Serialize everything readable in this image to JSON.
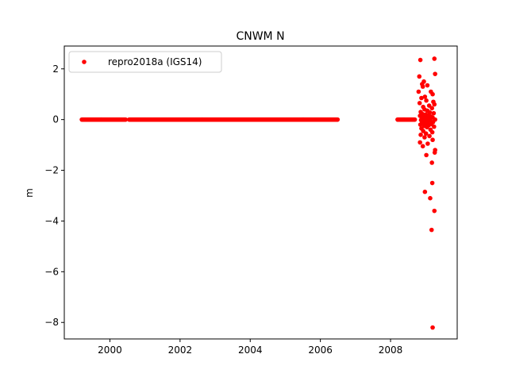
{
  "chart_data": {
    "type": "scatter",
    "title": "CNWM N",
    "xlabel": "",
    "ylabel": "m",
    "xlim": [
      1998.7,
      2009.9
    ],
    "ylim": [
      -8.65,
      2.9
    ],
    "xticks": [
      2000,
      2002,
      2004,
      2006,
      2008
    ],
    "yticks": [
      2,
      0,
      -2,
      -4,
      -6,
      -8
    ],
    "tick_labels": {
      "x": [
        "2000",
        "2002",
        "2004",
        "2006",
        "2008"
      ],
      "y": [
        "2",
        "0",
        "−2",
        "−4",
        "−6",
        "−8"
      ]
    },
    "grid": false,
    "legend": {
      "location": "top-left"
    },
    "series": [
      {
        "name": "repro2018a (IGS14)",
        "color": "#ff0000",
        "marker": "circle",
        "segments": [
          {
            "x_start": 1999.2,
            "x_end": 2000.45,
            "y": 0.0
          },
          {
            "x_start": 2000.55,
            "x_end": 2006.5,
            "y": 0.0
          },
          {
            "x_start": 2008.2,
            "x_end": 2008.7,
            "y": 0.0
          }
        ],
        "points": [
          [
            2008.85,
            2.35
          ],
          [
            2009.25,
            2.4
          ],
          [
            2009.27,
            1.8
          ],
          [
            2008.82,
            1.7
          ],
          [
            2008.95,
            1.5
          ],
          [
            2008.9,
            1.4
          ],
          [
            2009.05,
            1.35
          ],
          [
            2008.92,
            1.3
          ],
          [
            2009.15,
            1.1
          ],
          [
            2008.8,
            1.1
          ],
          [
            2009.2,
            1.0
          ],
          [
            2008.98,
            0.9
          ],
          [
            2008.88,
            0.85
          ],
          [
            2009.02,
            0.75
          ],
          [
            2009.22,
            0.7
          ],
          [
            2008.83,
            0.65
          ],
          [
            2009.25,
            0.6
          ],
          [
            2009.1,
            0.55
          ],
          [
            2008.93,
            0.5
          ],
          [
            2009.18,
            0.45
          ],
          [
            2008.97,
            0.4
          ],
          [
            2009.05,
            0.35
          ],
          [
            2008.86,
            0.3
          ],
          [
            2009.12,
            0.28
          ],
          [
            2009.23,
            0.25
          ],
          [
            2008.91,
            0.22
          ],
          [
            2009.0,
            0.2
          ],
          [
            2009.07,
            0.18
          ],
          [
            2008.84,
            0.15
          ],
          [
            2009.15,
            0.12
          ],
          [
            2008.95,
            0.1
          ],
          [
            2009.2,
            0.08
          ],
          [
            2009.03,
            0.05
          ],
          [
            2008.89,
            0.03
          ],
          [
            2009.1,
            0.02
          ],
          [
            2008.99,
            0.01
          ],
          [
            2009.27,
            0.0
          ],
          [
            2008.87,
            -0.02
          ],
          [
            2009.13,
            -0.04
          ],
          [
            2008.94,
            -0.06
          ],
          [
            2009.06,
            -0.08
          ],
          [
            2009.21,
            -0.1
          ],
          [
            2008.9,
            -0.12
          ],
          [
            2009.0,
            -0.15
          ],
          [
            2009.16,
            -0.18
          ],
          [
            2008.85,
            -0.2
          ],
          [
            2009.09,
            -0.22
          ],
          [
            2008.96,
            -0.25
          ],
          [
            2009.24,
            -0.28
          ],
          [
            2009.04,
            -0.3
          ],
          [
            2008.88,
            -0.35
          ],
          [
            2009.14,
            -0.4
          ],
          [
            2008.93,
            -0.45
          ],
          [
            2009.19,
            -0.5
          ],
          [
            2009.01,
            -0.55
          ],
          [
            2008.86,
            -0.6
          ],
          [
            2009.11,
            -0.65
          ],
          [
            2008.97,
            -0.7
          ],
          [
            2009.2,
            -0.8
          ],
          [
            2008.84,
            -0.9
          ],
          [
            2009.06,
            -0.95
          ],
          [
            2008.92,
            -1.05
          ],
          [
            2009.27,
            -1.2
          ],
          [
            2009.26,
            -1.3
          ],
          [
            2009.02,
            -1.4
          ],
          [
            2009.18,
            -1.7
          ],
          [
            2009.19,
            -2.5
          ],
          [
            2008.98,
            -2.85
          ],
          [
            2009.13,
            -3.1
          ],
          [
            2009.25,
            -3.6
          ],
          [
            2009.17,
            -4.35
          ],
          [
            2009.2,
            -8.2
          ]
        ]
      }
    ]
  }
}
